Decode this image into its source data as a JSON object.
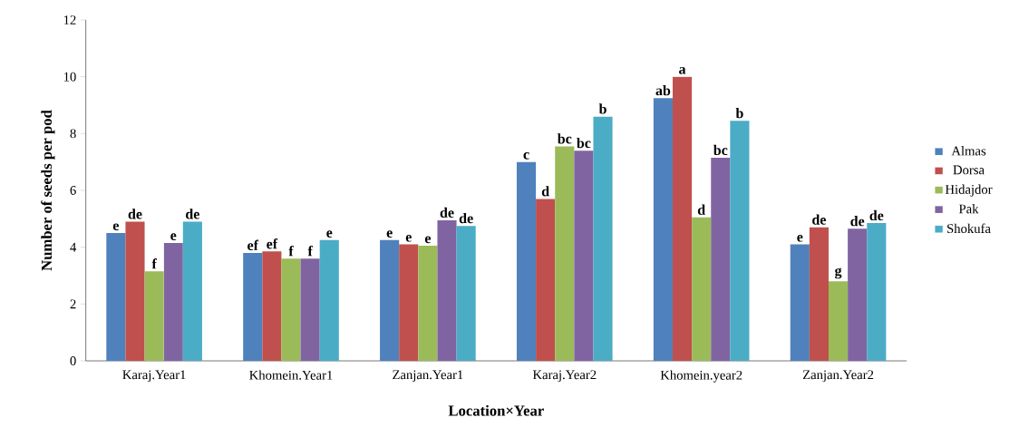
{
  "chart_data": {
    "type": "bar",
    "xlabel": "Location×Year",
    "ylabel": "Number of seeds per pod",
    "categories": [
      "Karaj.Year1",
      "Khomein.Year1",
      "Zanjan.Year1",
      "Karaj.Year2",
      "Khomein.year2",
      "Zanjan.Year2"
    ],
    "series": [
      {
        "name": "Almas",
        "color": "#4f81bd",
        "values": [
          4.5,
          3.8,
          4.25,
          7.0,
          9.25,
          4.1
        ],
        "value_labels": [
          "e",
          "ef",
          "e",
          "c",
          "ab",
          "e"
        ]
      },
      {
        "name": "Dorsa",
        "color": "#c0504d",
        "values": [
          4.9,
          3.85,
          4.1,
          5.7,
          10.0,
          4.7
        ],
        "value_labels": [
          "de",
          "ef",
          "e",
          "d",
          "a",
          "de"
        ]
      },
      {
        "name": "Hidajdor",
        "color": "#9bbb59",
        "values": [
          3.15,
          3.6,
          4.05,
          7.55,
          5.05,
          2.8
        ],
        "value_labels": [
          "f",
          "f",
          "e",
          "bc",
          "d",
          "g"
        ]
      },
      {
        "name": "Pak",
        "color": "#8064a2",
        "values": [
          4.15,
          3.6,
          4.95,
          7.4,
          7.15,
          4.65
        ],
        "value_labels": [
          "e",
          "f",
          "de",
          "bc",
          "bc",
          "de"
        ]
      },
      {
        "name": "Shokufa",
        "color": "#4bacc6",
        "values": [
          4.9,
          4.25,
          4.75,
          8.6,
          8.45,
          4.85
        ],
        "value_labels": [
          "de",
          "e",
          "de",
          "b",
          "b",
          "de"
        ]
      }
    ],
    "ylim": [
      0,
      12
    ],
    "yticks": [
      0,
      2,
      4,
      6,
      8,
      10,
      12
    ],
    "legend": "right",
    "grid": false
  }
}
